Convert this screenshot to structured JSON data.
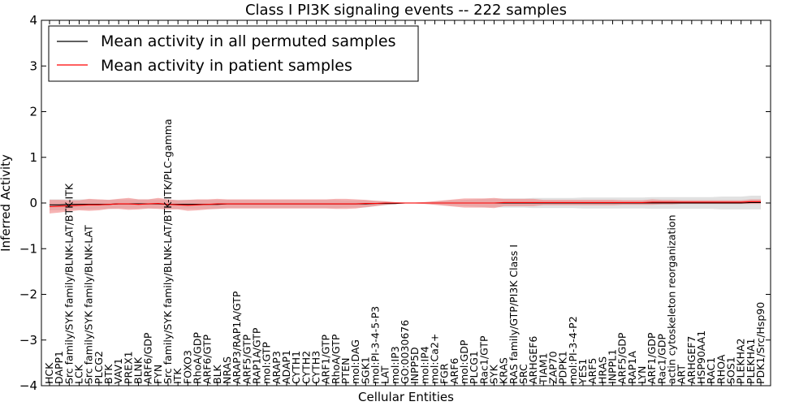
{
  "chart_data": {
    "type": "line",
    "title": "Class I PI3K signaling events -- 222 samples",
    "xlabel": "Cellular Entities",
    "ylabel": "Inferred Activity",
    "ylim": [
      -4,
      4
    ],
    "yticks": [
      -4,
      -3,
      -2,
      -1,
      0,
      1,
      2,
      3,
      4
    ],
    "legend_position": "top-left",
    "grid": false,
    "categories": [
      "HCK",
      "DAPP1",
      "Src family/SYK family/BLNK-LAT/BTK-ITK",
      "LCK",
      "Src family/SYK family/BLNK-LAT",
      "PLCG2",
      "BTK",
      "VAV1",
      "PREX1",
      "BLNK",
      "ARF6/GDP",
      "FYN",
      "Src family/SYK family/BLNK-LAT/BTK-ITK/PLC-gamma",
      "ITK",
      "FOXO3",
      "RhoA/GDP",
      "ARF6/GTP",
      "BLK",
      "NRAS",
      "ARAP3/RAP1A/GTP",
      "ARF5/GTP",
      "RAP1A/GTP",
      "mol:GTP",
      "ARAP3",
      "ADAP1",
      "CYTH1",
      "CYTH2",
      "CYTH3",
      "ARF1/GTP",
      "RhoA/GTP",
      "PTEN",
      "mol:DAG",
      "SGK1",
      "mol:PI-3-4-5-P3",
      "LAT",
      "mol:IP3",
      "GO:0030676",
      "INPP5D",
      "mol:IP4",
      "mol:Ca2+",
      "FGR",
      "ARF6",
      "mol:GDP",
      "PLCG1",
      "Rac1/GTP",
      "SYK",
      "KRAS",
      "RAS family/GTP/PI3K Class I",
      "SRC",
      "ARHGEF6",
      "TIAM1",
      "ZAP70",
      "PDPK1",
      "mol:PI-3-4-P2",
      "YES1",
      "ARF5",
      "HRAS",
      "INPPL1",
      "ARF5/GDP",
      "RAP1A",
      "LYN",
      "ARF1/GDP",
      "Rac1/GDP",
      "actin cytoskeleton reorganization",
      "ART",
      "ARHGEF7",
      "HSP90AA1",
      "RAC1",
      "RHOA",
      "SOS1",
      "PLEKHA2",
      "PLEKHA1",
      "PDK1/Src/Hsp90"
    ],
    "series": [
      {
        "name": "Mean activity in all permuted samples",
        "color": "#000000",
        "band_color": "#c8c8c8",
        "values": [
          -0.04,
          -0.04,
          -0.03,
          -0.03,
          -0.03,
          -0.03,
          -0.03,
          -0.02,
          -0.02,
          -0.02,
          -0.02,
          -0.02,
          -0.03,
          -0.03,
          -0.03,
          -0.03,
          -0.03,
          -0.03,
          -0.02,
          -0.02,
          -0.02,
          -0.02,
          -0.02,
          -0.02,
          -0.02,
          -0.02,
          -0.02,
          -0.02,
          -0.02,
          -0.02,
          -0.02,
          -0.02,
          -0.02,
          -0.01,
          -0.01,
          -0.01,
          0.0,
          0.0,
          0.0,
          0.0,
          0.0,
          0.0,
          0.0,
          0.0,
          0.0,
          0.0,
          0.0,
          0.0,
          0.0,
          0.0,
          0.0,
          0.0,
          0.0,
          0.0,
          0.0,
          0.0,
          0.0,
          0.0,
          0.0,
          0.0,
          0.0,
          0.0,
          0.0,
          0.0,
          0.0,
          0.0,
          0.0,
          0.0,
          0.0,
          0.0,
          0.0,
          0.01,
          0.01
        ],
        "band": [
          0.12,
          0.12,
          0.11,
          0.11,
          0.11,
          0.1,
          0.1,
          0.1,
          0.1,
          0.1,
          0.1,
          0.1,
          0.1,
          0.1,
          0.1,
          0.1,
          0.1,
          0.1,
          0.09,
          0.09,
          0.09,
          0.09,
          0.09,
          0.09,
          0.09,
          0.09,
          0.09,
          0.09,
          0.09,
          0.09,
          0.08,
          0.08,
          0.08,
          0.06,
          0.04,
          0.02,
          0.01,
          0.01,
          0.02,
          0.03,
          0.05,
          0.06,
          0.07,
          0.08,
          0.09,
          0.09,
          0.1,
          0.1,
          0.1,
          0.11,
          0.11,
          0.11,
          0.11,
          0.11,
          0.12,
          0.12,
          0.12,
          0.12,
          0.12,
          0.12,
          0.12,
          0.13,
          0.13,
          0.13,
          0.13,
          0.13,
          0.13,
          0.13,
          0.14,
          0.14,
          0.14,
          0.15,
          0.15
        ]
      },
      {
        "name": "Mean activity in patient samples",
        "color": "#ff0000",
        "band_color": "#f08080",
        "values": [
          -0.08,
          -0.07,
          -0.06,
          -0.05,
          -0.04,
          -0.04,
          -0.03,
          -0.02,
          -0.02,
          -0.03,
          -0.02,
          -0.01,
          -0.03,
          -0.04,
          -0.05,
          -0.04,
          -0.03,
          -0.02,
          -0.02,
          -0.02,
          -0.02,
          -0.02,
          -0.02,
          -0.02,
          -0.02,
          -0.02,
          -0.02,
          -0.02,
          -0.02,
          -0.02,
          -0.02,
          -0.02,
          -0.01,
          -0.01,
          0.0,
          0.0,
          0.0,
          0.0,
          0.0,
          0.0,
          0.0,
          0.0,
          0.0,
          0.0,
          0.0,
          0.0,
          0.01,
          0.01,
          0.01,
          0.01,
          0.01,
          0.01,
          0.01,
          0.01,
          0.01,
          0.01,
          0.01,
          0.01,
          0.01,
          0.01,
          0.01,
          0.02,
          0.02,
          0.02,
          0.02,
          0.02,
          0.02,
          0.02,
          0.02,
          0.02,
          0.02,
          0.03,
          0.03
        ],
        "band": [
          0.15,
          0.14,
          0.12,
          0.11,
          0.13,
          0.12,
          0.1,
          0.11,
          0.13,
          0.11,
          0.1,
          0.12,
          0.11,
          0.1,
          0.12,
          0.12,
          0.11,
          0.11,
          0.1,
          0.1,
          0.1,
          0.1,
          0.1,
          0.1,
          0.1,
          0.1,
          0.1,
          0.1,
          0.1,
          0.11,
          0.11,
          0.1,
          0.08,
          0.06,
          0.04,
          0.02,
          0.01,
          0.01,
          0.02,
          0.04,
          0.06,
          0.08,
          0.1,
          0.1,
          0.1,
          0.11,
          0.08,
          0.08,
          0.08,
          0.08,
          0.06,
          0.06,
          0.06,
          0.06,
          0.06,
          0.06,
          0.06,
          0.06,
          0.05,
          0.05,
          0.05,
          0.06,
          0.05,
          0.05,
          0.04,
          0.04,
          0.04,
          0.04,
          0.04,
          0.04,
          0.04,
          0.05,
          0.05
        ]
      }
    ]
  }
}
